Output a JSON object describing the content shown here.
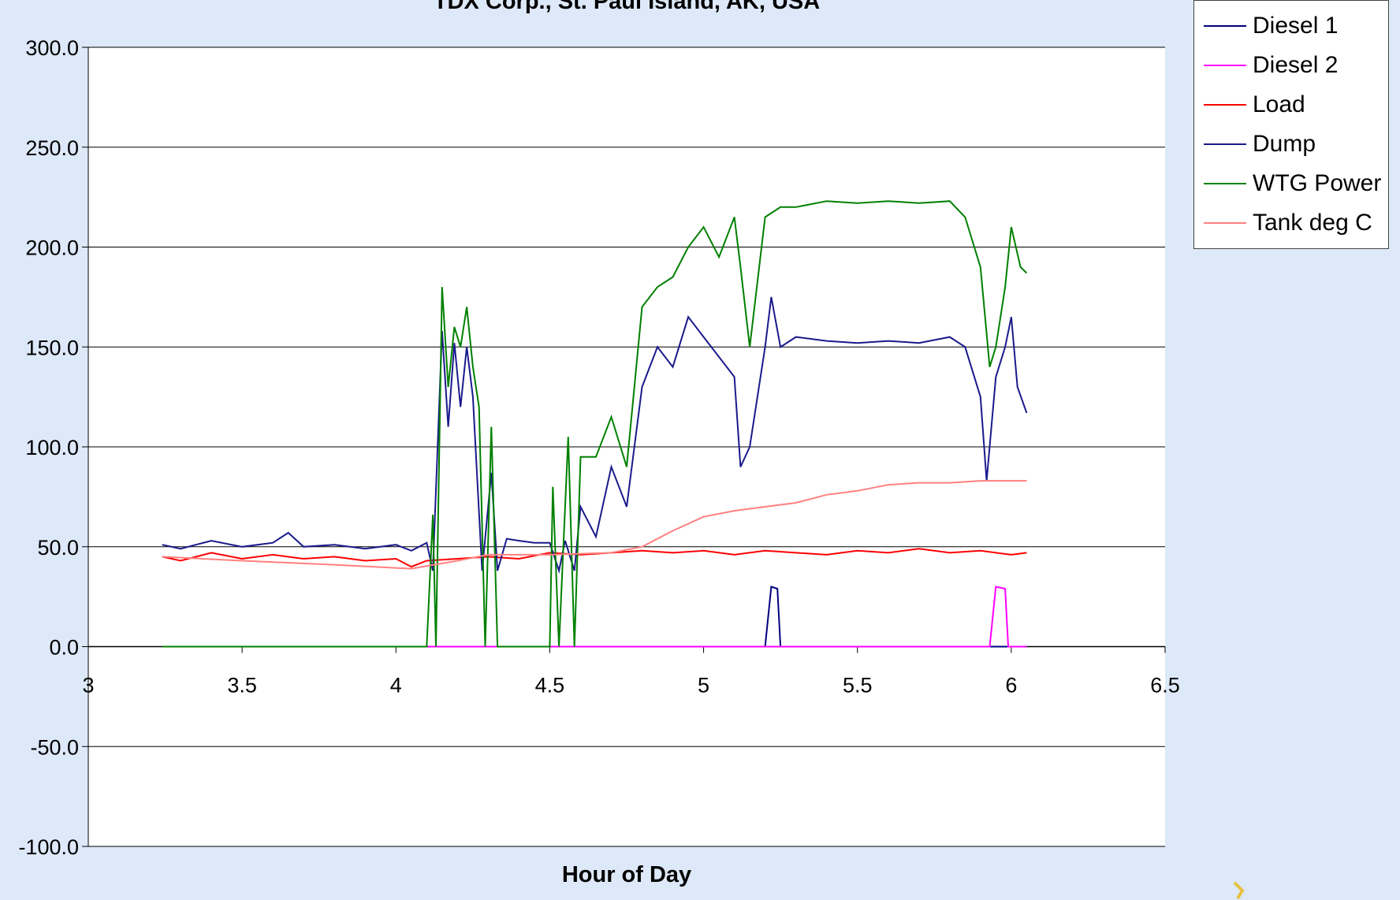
{
  "chart_data": {
    "type": "line",
    "title": "TDX Corp., St. Paul Island, AK, USA",
    "xlabel": "Hour of Day",
    "ylabel": "",
    "xlim": [
      3,
      6.5
    ],
    "ylim": [
      -100,
      300
    ],
    "x_ticks": [
      "3",
      "3.5",
      "4",
      "4.5",
      "5",
      "5.5",
      "6",
      "6.5"
    ],
    "y_ticks": [
      "300.0",
      "250.0",
      "200.0",
      "150.0",
      "100.0",
      "50.0",
      "0.0",
      "-50.0",
      "-100.0"
    ],
    "grid": true,
    "legend_position": "top-right",
    "series": [
      {
        "name": "Diesel 1",
        "color": "#000080",
        "points": [
          [
            3.24,
            0
          ],
          [
            4.1,
            0
          ],
          [
            4.12,
            0
          ],
          [
            5.2,
            0
          ],
          [
            5.22,
            30
          ],
          [
            5.24,
            29
          ],
          [
            5.25,
            0
          ],
          [
            6.05,
            0
          ]
        ]
      },
      {
        "name": "Diesel 2",
        "color": "#ff00ff",
        "points": [
          [
            3.24,
            0
          ],
          [
            5.93,
            0
          ],
          [
            5.95,
            30
          ],
          [
            5.98,
            29
          ],
          [
            5.99,
            0
          ],
          [
            6.05,
            0
          ]
        ]
      },
      {
        "name": "Load",
        "color": "#ff0000",
        "points": [
          [
            3.24,
            45
          ],
          [
            3.3,
            43
          ],
          [
            3.4,
            47
          ],
          [
            3.5,
            44
          ],
          [
            3.6,
            46
          ],
          [
            3.7,
            44
          ],
          [
            3.8,
            45
          ],
          [
            3.9,
            43
          ],
          [
            4.0,
            44
          ],
          [
            4.05,
            40
          ],
          [
            4.1,
            43
          ],
          [
            4.2,
            44
          ],
          [
            4.3,
            45
          ],
          [
            4.4,
            44
          ],
          [
            4.5,
            47
          ],
          [
            4.6,
            46
          ],
          [
            4.7,
            47
          ],
          [
            4.8,
            48
          ],
          [
            4.9,
            47
          ],
          [
            5.0,
            48
          ],
          [
            5.1,
            46
          ],
          [
            5.2,
            48
          ],
          [
            5.3,
            47
          ],
          [
            5.4,
            46
          ],
          [
            5.5,
            48
          ],
          [
            5.6,
            47
          ],
          [
            5.7,
            49
          ],
          [
            5.8,
            47
          ],
          [
            5.9,
            48
          ],
          [
            6.0,
            46
          ],
          [
            6.05,
            47
          ]
        ]
      },
      {
        "name": "Dump",
        "color": "#1a1a8c",
        "points": [
          [
            3.24,
            51
          ],
          [
            3.3,
            49
          ],
          [
            3.4,
            53
          ],
          [
            3.5,
            50
          ],
          [
            3.6,
            52
          ],
          [
            3.65,
            57
          ],
          [
            3.7,
            50
          ],
          [
            3.8,
            51
          ],
          [
            3.9,
            49
          ],
          [
            4.0,
            51
          ],
          [
            4.05,
            48
          ],
          [
            4.1,
            52
          ],
          [
            4.12,
            38
          ],
          [
            4.15,
            158
          ],
          [
            4.17,
            110
          ],
          [
            4.19,
            152
          ],
          [
            4.21,
            120
          ],
          [
            4.23,
            150
          ],
          [
            4.25,
            125
          ],
          [
            4.28,
            38
          ],
          [
            4.31,
            87
          ],
          [
            4.33,
            38
          ],
          [
            4.36,
            54
          ],
          [
            4.4,
            53
          ],
          [
            4.45,
            52
          ],
          [
            4.5,
            52
          ],
          [
            4.53,
            38
          ],
          [
            4.55,
            53
          ],
          [
            4.58,
            38
          ],
          [
            4.6,
            70
          ],
          [
            4.65,
            55
          ],
          [
            4.7,
            90
          ],
          [
            4.75,
            70
          ],
          [
            4.8,
            130
          ],
          [
            4.85,
            150
          ],
          [
            4.9,
            140
          ],
          [
            4.95,
            165
          ],
          [
            5.0,
            155
          ],
          [
            5.05,
            145
          ],
          [
            5.1,
            135
          ],
          [
            5.12,
            90
          ],
          [
            5.15,
            100
          ],
          [
            5.2,
            150
          ],
          [
            5.22,
            175
          ],
          [
            5.25,
            150
          ],
          [
            5.3,
            155
          ],
          [
            5.4,
            153
          ],
          [
            5.5,
            152
          ],
          [
            5.6,
            153
          ],
          [
            5.7,
            152
          ],
          [
            5.8,
            155
          ],
          [
            5.85,
            150
          ],
          [
            5.9,
            125
          ],
          [
            5.92,
            83
          ],
          [
            5.95,
            135
          ],
          [
            5.98,
            150
          ],
          [
            6.0,
            165
          ],
          [
            6.02,
            130
          ],
          [
            6.05,
            117
          ]
        ]
      },
      {
        "name": "WTG Power",
        "color": "#008000",
        "points": [
          [
            3.24,
            0
          ],
          [
            4.1,
            0
          ],
          [
            4.12,
            66
          ],
          [
            4.13,
            0
          ],
          [
            4.15,
            180
          ],
          [
            4.17,
            130
          ],
          [
            4.19,
            160
          ],
          [
            4.21,
            150
          ],
          [
            4.23,
            170
          ],
          [
            4.25,
            140
          ],
          [
            4.27,
            120
          ],
          [
            4.29,
            0
          ],
          [
            4.31,
            110
          ],
          [
            4.33,
            0
          ],
          [
            4.5,
            0
          ],
          [
            4.51,
            80
          ],
          [
            4.53,
            0
          ],
          [
            4.56,
            105
          ],
          [
            4.58,
            0
          ],
          [
            4.6,
            95
          ],
          [
            4.65,
            95
          ],
          [
            4.7,
            115
          ],
          [
            4.75,
            90
          ],
          [
            4.8,
            170
          ],
          [
            4.85,
            180
          ],
          [
            4.9,
            185
          ],
          [
            4.95,
            200
          ],
          [
            5.0,
            210
          ],
          [
            5.05,
            195
          ],
          [
            5.1,
            215
          ],
          [
            5.12,
            190
          ],
          [
            5.15,
            150
          ],
          [
            5.2,
            215
          ],
          [
            5.25,
            220
          ],
          [
            5.3,
            220
          ],
          [
            5.4,
            223
          ],
          [
            5.5,
            222
          ],
          [
            5.6,
            223
          ],
          [
            5.7,
            222
          ],
          [
            5.8,
            223
          ],
          [
            5.85,
            215
          ],
          [
            5.9,
            190
          ],
          [
            5.93,
            140
          ],
          [
            5.95,
            150
          ],
          [
            5.98,
            180
          ],
          [
            6.0,
            210
          ],
          [
            6.03,
            190
          ],
          [
            6.05,
            187
          ]
        ]
      },
      {
        "name": "Tank deg C",
        "color": "#ff8080",
        "points": [
          [
            3.24,
            45
          ],
          [
            3.5,
            43
          ],
          [
            3.8,
            41
          ],
          [
            4.05,
            39
          ],
          [
            4.2,
            43
          ],
          [
            4.3,
            46
          ],
          [
            4.5,
            46
          ],
          [
            4.7,
            47
          ],
          [
            4.8,
            50
          ],
          [
            4.9,
            58
          ],
          [
            5.0,
            65
          ],
          [
            5.1,
            68
          ],
          [
            5.2,
            70
          ],
          [
            5.3,
            72
          ],
          [
            5.4,
            76
          ],
          [
            5.5,
            78
          ],
          [
            5.6,
            81
          ],
          [
            5.7,
            82
          ],
          [
            5.8,
            82
          ],
          [
            5.9,
            83
          ],
          [
            6.0,
            83
          ],
          [
            6.05,
            83
          ]
        ]
      }
    ]
  }
}
